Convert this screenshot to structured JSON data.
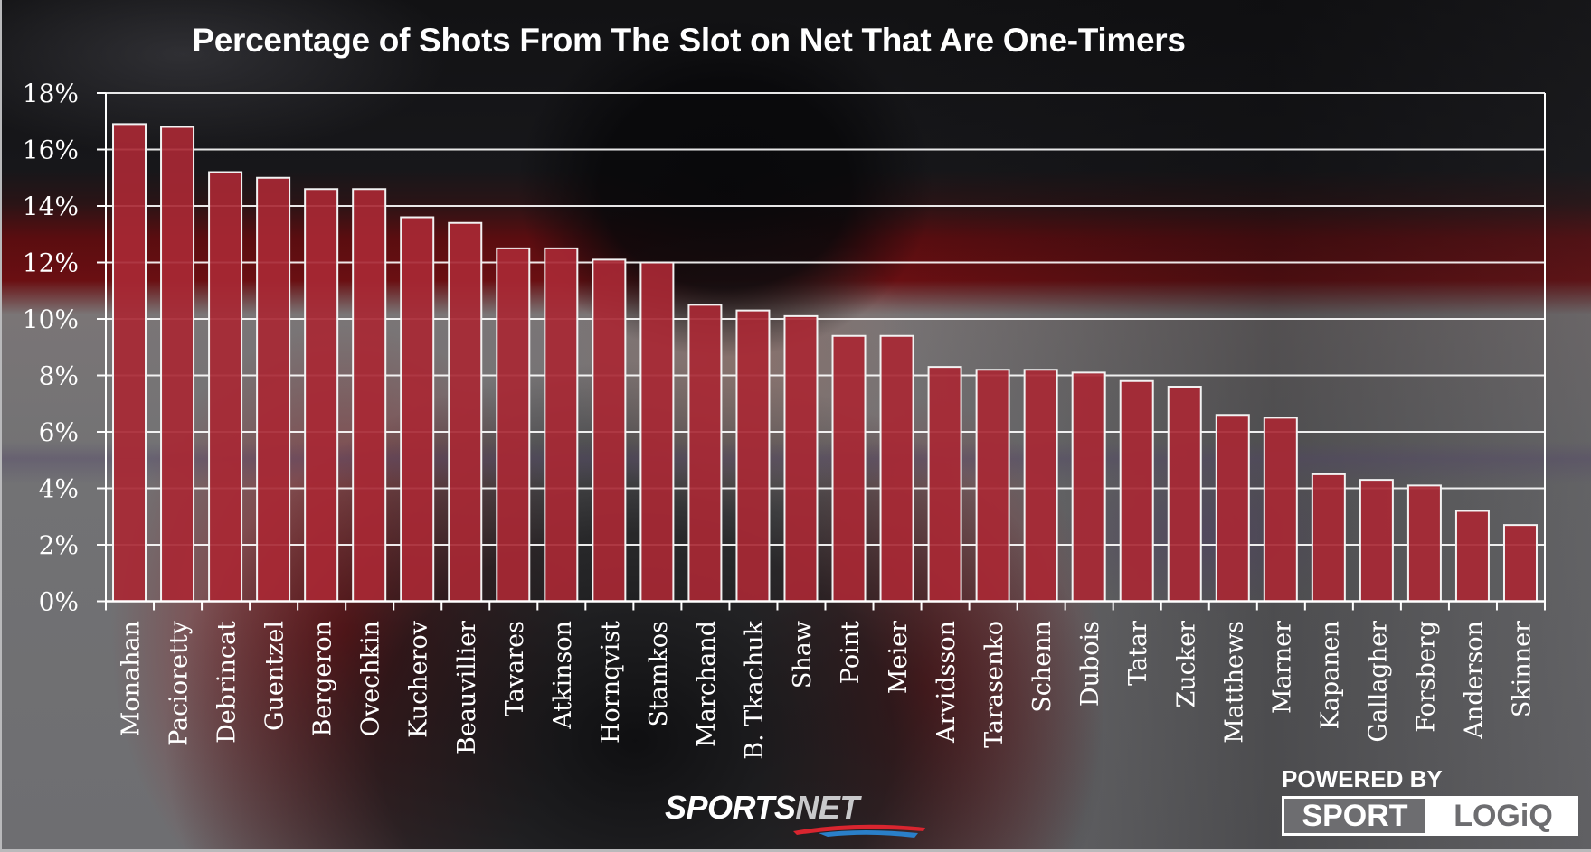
{
  "chart_data": {
    "type": "bar",
    "title": "Percentage of Shots From The Slot on Net That Are One-Timers",
    "xlabel": "",
    "ylabel": "",
    "ylim": [
      0,
      18
    ],
    "yticks": [
      0,
      2,
      4,
      6,
      8,
      10,
      12,
      14,
      16,
      18
    ],
    "ytick_labels": [
      "0%",
      "2%",
      "4%",
      "6%",
      "8%",
      "10%",
      "12%",
      "14%",
      "16%",
      "18%"
    ],
    "grid": true,
    "legend": "none",
    "categories": [
      "Monahan",
      "Pacioretty",
      "Debrincat",
      "Guentzel",
      "Bergeron",
      "Ovechkin",
      "Kucherov",
      "Beauvillier",
      "Tavares",
      "Atkinson",
      "Hornqvist",
      "Stamkos",
      "Marchand",
      "B. Tkachuk",
      "Shaw",
      "Point",
      "Meier",
      "Arvidsson",
      "Tarasenko",
      "Schenn",
      "Dubois",
      "Tatar",
      "Zucker",
      "Matthews",
      "Marner",
      "Kapanen",
      "Gallagher",
      "Forsberg",
      "Anderson",
      "Skinner"
    ],
    "values": [
      16.9,
      16.8,
      15.2,
      15.0,
      14.6,
      14.6,
      13.6,
      13.4,
      12.5,
      12.5,
      12.1,
      12.0,
      10.5,
      10.3,
      10.1,
      9.4,
      9.4,
      8.3,
      8.2,
      8.2,
      8.1,
      7.8,
      7.6,
      6.6,
      6.5,
      4.5,
      4.3,
      4.1,
      3.2,
      2.7
    ],
    "units": "%"
  },
  "colors": {
    "bar_fill": "#a82834",
    "bar_stroke": "#f2f2f2",
    "grid": "#ffffff",
    "text": "#ffffff"
  },
  "branding": {
    "sportsnet_sports": "SPORTS",
    "sportsnet_net": "NET",
    "powered_by": "POWERED BY",
    "sport": "SPORT",
    "logiq": "LOGiQ"
  }
}
